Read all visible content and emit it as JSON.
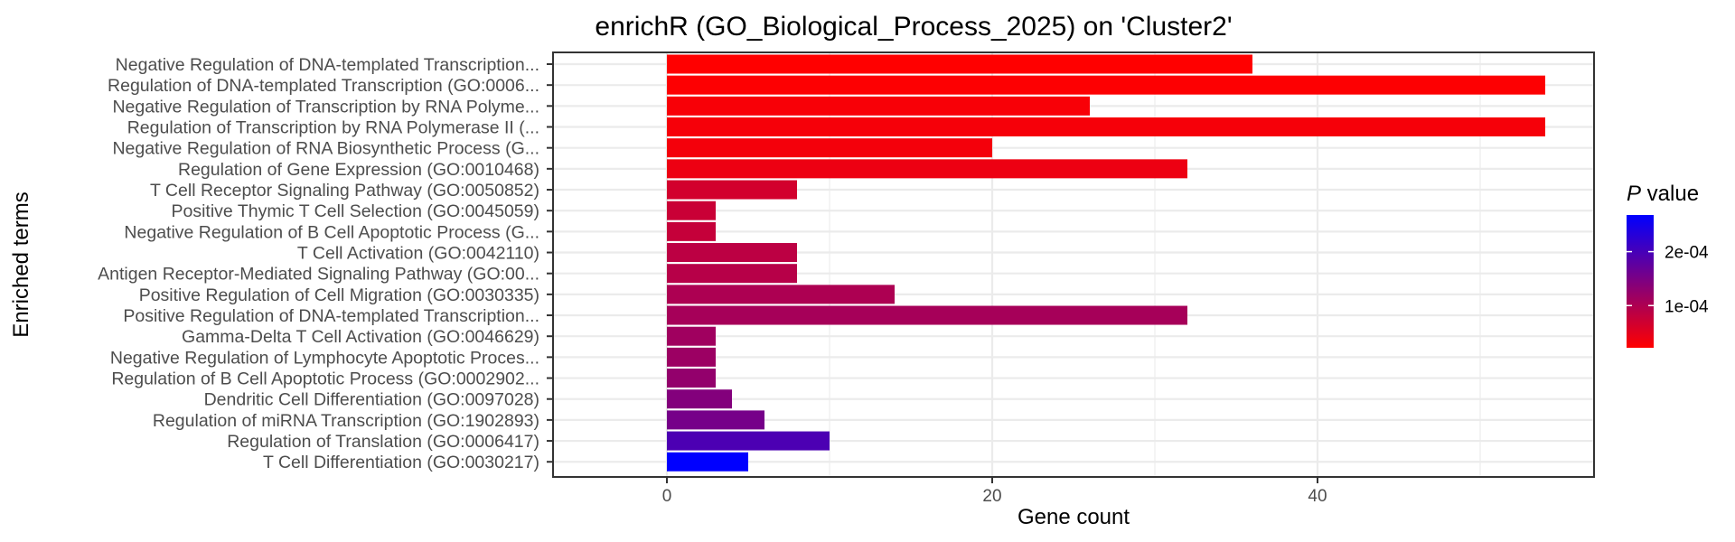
{
  "chart_data": {
    "type": "bar",
    "orientation": "horizontal",
    "title": "enrichR (GO_Biological_Process_2025) on 'Cluster2'",
    "xlabel": "Gene count",
    "ylabel": "Enriched terms",
    "xlim": [
      -7,
      57
    ],
    "xticks": [
      "0",
      "20",
      "40"
    ],
    "grid": true,
    "legend": {
      "title_italic": "P",
      "title_rest": " value",
      "position": "right",
      "ticks": [
        "2e-04",
        "1e-04"
      ],
      "tick_values": [
        0.0002,
        0.0001
      ],
      "range": [
        2.17e-05,
        0.000268
      ],
      "color_low": "#FF0000",
      "color_high": "#0000FF"
    },
    "categories": [
      "Negative Regulation of DNA-templated Transcription...",
      "Regulation of DNA-templated Transcription (GO:0006...",
      "Negative Regulation of Transcription by RNA Polyme...",
      "Regulation of Transcription by RNA Polymerase II (...",
      "Negative Regulation of RNA Biosynthetic Process (G...",
      "Regulation of Gene Expression (GO:0010468)",
      "T Cell Receptor Signaling Pathway (GO:0050852)",
      "Positive Thymic T Cell Selection (GO:0045059)",
      "Negative Regulation of B Cell Apoptotic Process (G...",
      "T Cell Activation (GO:0042110)",
      "Antigen Receptor-Mediated Signaling Pathway (GO:00...",
      "Positive Regulation of Cell Migration (GO:0030335)",
      "Positive Regulation of DNA-templated Transcription...",
      "Gamma-Delta T Cell Activation (GO:0046629)",
      "Negative Regulation of Lymphocyte Apoptotic Proces...",
      "Regulation of B Cell Apoptotic Process (GO:0002902...",
      "Dendritic Cell Differentiation (GO:0097028)",
      "Regulation of miRNA Transcription (GO:1902893)",
      "Regulation of Translation (GO:0006417)",
      "T Cell Differentiation (GO:0030217)"
    ],
    "values": [
      36,
      54,
      26,
      54,
      20,
      32,
      8,
      3,
      3,
      8,
      8,
      14,
      32,
      3,
      3,
      3,
      4,
      6,
      10,
      5
    ],
    "pvalues": [
      2.17e-05,
      2.38e-05,
      2.81e-05,
      3.03e-05,
      3.25e-05,
      3.9e-05,
      6.5e-05,
      7.37e-05,
      7.8e-05,
      8.67e-05,
      9.1e-05,
      0.000101,
      0.000108,
      0.000113,
      0.000117,
      0.000126,
      0.000141,
      0.000154,
      0.000195,
      0.000268
    ]
  }
}
